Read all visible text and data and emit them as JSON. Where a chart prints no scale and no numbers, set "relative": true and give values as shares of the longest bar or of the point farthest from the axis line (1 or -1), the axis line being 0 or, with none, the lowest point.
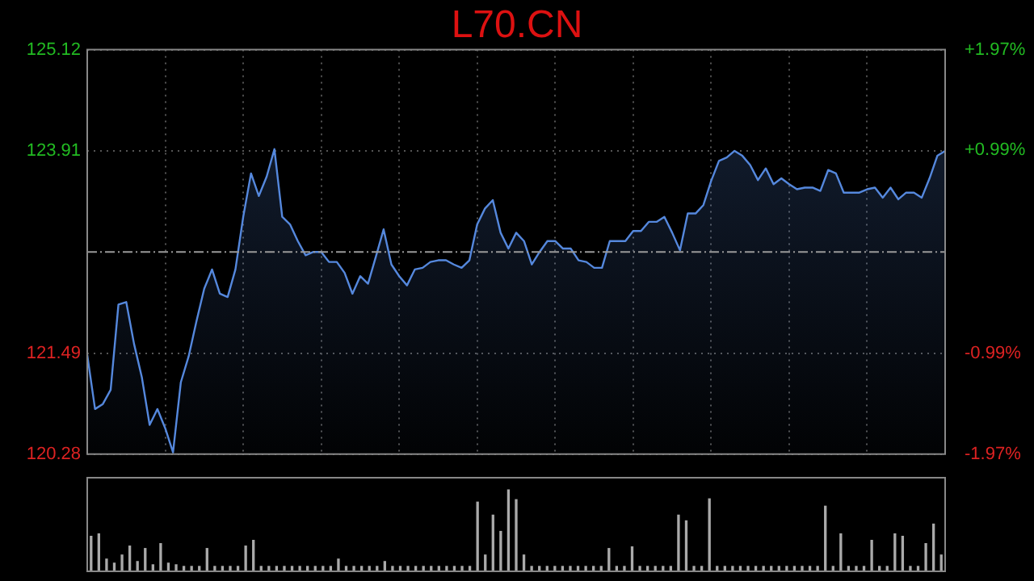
{
  "chart_data": [
    {
      "type": "area",
      "title": "L70.CN",
      "categories": [
        null,
        null,
        null,
        null,
        null,
        null,
        null,
        null,
        null,
        null,
        null,
        null,
        null,
        null,
        null,
        null,
        null,
        null,
        null,
        null,
        null,
        null,
        null,
        null,
        null,
        null,
        null,
        null,
        null,
        null,
        null,
        null,
        null,
        null,
        null,
        null,
        null,
        null,
        null,
        null,
        null,
        null,
        null,
        null,
        null,
        null,
        null,
        null,
        null,
        null,
        null,
        null,
        null,
        null,
        null,
        null,
        null,
        null,
        null,
        null,
        null,
        null,
        null,
        null,
        null,
        null,
        null,
        null,
        null,
        null,
        null,
        null,
        null,
        null,
        null,
        null,
        null,
        null,
        null,
        null,
        null,
        null,
        null,
        null,
        null,
        null,
        null,
        null,
        null,
        null,
        null,
        null,
        null,
        null,
        null,
        null,
        null,
        null,
        null,
        null,
        null,
        null,
        null,
        null,
        null,
        null,
        null,
        null,
        null,
        null,
        null
      ],
      "series": [
        {
          "color": "#5588dd",
          "values": [
            121.47,
            120.82,
            120.88,
            121.05,
            122.07,
            122.1,
            121.6,
            121.2,
            120.63,
            120.82,
            120.59,
            120.3,
            121.14,
            121.45,
            121.87,
            122.26,
            122.49,
            122.2,
            122.16,
            122.49,
            123.12,
            123.64,
            123.37,
            123.6,
            123.93,
            123.12,
            123.03,
            122.83,
            122.66,
            122.7,
            122.7,
            122.58,
            122.58,
            122.45,
            122.2,
            122.41,
            122.32,
            122.64,
            122.97,
            122.55,
            122.41,
            122.3,
            122.49,
            122.51,
            122.58,
            122.6,
            122.6,
            122.55,
            122.51,
            122.6,
            123.03,
            123.22,
            123.32,
            122.93,
            122.74,
            122.93,
            122.83,
            122.55,
            122.7,
            122.83,
            122.83,
            122.74,
            122.74,
            122.6,
            122.58,
            122.51,
            122.51,
            122.83,
            122.83,
            122.83,
            122.95,
            122.95,
            123.06,
            123.06,
            123.12,
            122.93,
            122.72,
            123.16,
            123.16,
            123.26,
            123.55,
            123.79,
            123.83,
            123.91,
            123.85,
            123.74,
            123.56,
            123.7,
            123.51,
            123.58,
            123.51,
            123.45,
            123.47,
            123.47,
            123.43,
            123.68,
            123.64,
            123.41,
            123.41,
            123.41,
            123.45,
            123.47,
            123.35,
            123.47,
            123.33,
            123.41,
            123.41,
            123.35,
            123.58,
            123.85,
            123.91
          ]
        }
      ],
      "ylim": [
        120.28,
        125.12
      ],
      "yticks": [
        120.28,
        121.49,
        123.91,
        125.12
      ],
      "y2lim": [
        -1.97,
        1.97
      ],
      "y2ticks": [
        {
          "value": -1.97,
          "label": "-1.97%"
        },
        {
          "value": -0.99,
          "label": "-0.99%"
        },
        {
          "value": 0.99,
          "label": "+0.99%"
        },
        {
          "value": 1.97,
          "label": "+1.97%"
        }
      ],
      "grid": true,
      "ref_lines": [
        {
          "axis": "y",
          "value": 122.7,
          "line_style": "dashed"
        }
      ]
    },
    {
      "type": "bar",
      "relative": true,
      "categories": [
        null,
        null,
        null,
        null,
        null,
        null,
        null,
        null,
        null,
        null,
        null,
        null,
        null,
        null,
        null,
        null,
        null,
        null,
        null,
        null,
        null,
        null,
        null,
        null,
        null,
        null,
        null,
        null,
        null,
        null,
        null,
        null,
        null,
        null,
        null,
        null,
        null,
        null,
        null,
        null,
        null,
        null,
        null,
        null,
        null,
        null,
        null,
        null,
        null,
        null,
        null,
        null,
        null,
        null,
        null,
        null,
        null,
        null,
        null,
        null,
        null,
        null,
        null,
        null,
        null,
        null,
        null,
        null,
        null,
        null,
        null,
        null,
        null,
        null,
        null,
        null,
        null,
        null,
        null,
        null,
        null,
        null,
        null,
        null,
        null,
        null,
        null,
        null,
        null,
        null,
        null,
        null,
        null,
        null,
        null,
        null,
        null,
        null,
        null,
        null,
        null,
        null,
        null,
        null,
        null,
        null,
        null,
        null,
        null,
        null,
        null
      ],
      "color": "#aaaaaa",
      "values": [
        0.43,
        0.46,
        0.15,
        0.1,
        0.2,
        0.31,
        0.12,
        0.28,
        0.08,
        0.34,
        0.1,
        0.08,
        0.06,
        0.06,
        0.06,
        0.28,
        0.06,
        0.06,
        0.06,
        0.06,
        0.31,
        0.38,
        0.06,
        0.06,
        0.06,
        0.06,
        0.06,
        0.06,
        0.06,
        0.06,
        0.06,
        0.06,
        0.15,
        0.06,
        0.06,
        0.06,
        0.06,
        0.06,
        0.12,
        0.06,
        0.06,
        0.06,
        0.06,
        0.06,
        0.06,
        0.06,
        0.06,
        0.06,
        0.06,
        0.06,
        0.85,
        0.2,
        0.69,
        0.49,
        1,
        0.88,
        0.2,
        0.06,
        0.06,
        0.06,
        0.06,
        0.06,
        0.06,
        0.06,
        0.06,
        0.06,
        0.06,
        0.28,
        0.06,
        0.06,
        0.3,
        0.06,
        0.06,
        0.06,
        0.06,
        0.06,
        0.69,
        0.62,
        0.06,
        0.06,
        0.89,
        0.06,
        0.06,
        0.06,
        0.06,
        0.06,
        0.06,
        0.06,
        0.06,
        0.06,
        0.06,
        0.06,
        0.06,
        0.06,
        0.06,
        0.8,
        0.06,
        0.46,
        0.06,
        0.06,
        0.06,
        0.38,
        0.06,
        0.06,
        0.46,
        0.43,
        0.06,
        0.06,
        0.34,
        0.58,
        0.2
      ]
    }
  ]
}
